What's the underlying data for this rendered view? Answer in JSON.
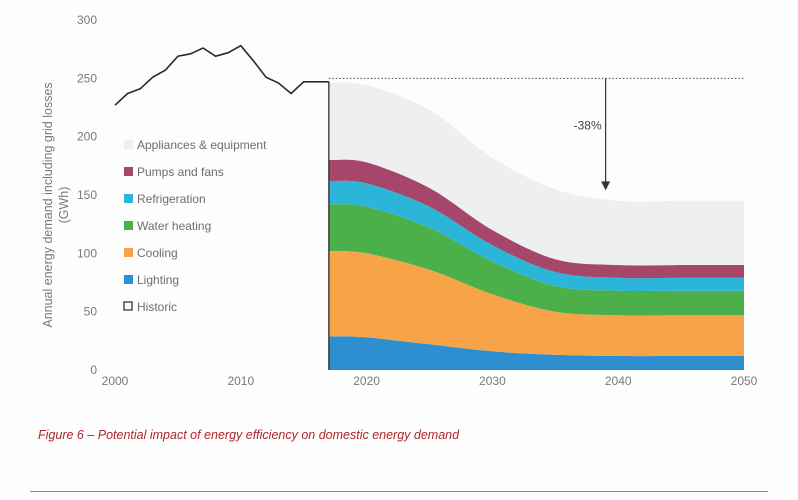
{
  "caption": "Figure 6 – Potential impact of energy efficiency on domestic energy demand",
  "chart_data": {
    "type": "area",
    "title": "",
    "ylabel": "Annual energy demand including grid losses (GWh)",
    "xlabel": "",
    "xlim": [
      2000,
      2050
    ],
    "ylim": [
      0,
      300
    ],
    "x_ticks": [
      2000,
      2010,
      2020,
      2030,
      2040,
      2050
    ],
    "y_ticks": [
      0,
      50,
      100,
      150,
      200,
      250,
      300
    ],
    "grid": false,
    "legend_position": "left",
    "legend": [
      {
        "label": "Appliances & equipment",
        "color": "#eef0f0",
        "marker": "square"
      },
      {
        "label": "Pumps and fans",
        "color": "#a6466a",
        "marker": "square"
      },
      {
        "label": "Refrigeration",
        "color": "#2bb6d9",
        "marker": "square"
      },
      {
        "label": "Water heating",
        "color": "#4cb04a",
        "marker": "square"
      },
      {
        "label": "Cooling",
        "color": "#f7a448",
        "marker": "square"
      },
      {
        "label": "Lighting",
        "color": "#2d8fd0",
        "marker": "square"
      },
      {
        "label": "Historic",
        "color": "#333333",
        "marker": "outline"
      }
    ],
    "historic": {
      "name": "Historic",
      "x": [
        2000,
        2001,
        2002,
        2003,
        2004,
        2005,
        2006,
        2007,
        2008,
        2009,
        2010,
        2011,
        2012,
        2013,
        2014,
        2015,
        2016,
        2017
      ],
      "y": [
        227,
        237,
        241,
        251,
        257,
        269,
        271,
        276,
        269,
        272,
        278,
        265,
        251,
        246,
        237,
        247,
        247,
        247
      ]
    },
    "projection": {
      "x": [
        2017,
        2020,
        2025,
        2030,
        2035,
        2040,
        2045,
        2050
      ],
      "series": [
        {
          "name": "Lighting",
          "values": [
            29,
            28,
            22,
            16,
            13,
            12,
            12,
            12
          ]
        },
        {
          "name": "Cooling",
          "values": [
            73,
            72,
            64,
            49,
            37,
            35,
            35,
            35
          ]
        },
        {
          "name": "Water heating",
          "values": [
            40,
            40,
            36,
            28,
            22,
            21,
            21,
            21
          ]
        },
        {
          "name": "Refrigeration",
          "values": [
            20,
            20,
            18,
            14,
            12,
            11,
            11,
            11
          ]
        },
        {
          "name": "Pumps and fans",
          "values": [
            18,
            18,
            16,
            13,
            11,
            11,
            11,
            11
          ]
        },
        {
          "name": "Appliances & equipment",
          "values": [
            66,
            66,
            67,
            62,
            60,
            55,
            55,
            55
          ]
        }
      ]
    },
    "baseline": {
      "x": [
        2017,
        2050
      ],
      "y": [
        250,
        250
      ],
      "style": "dotted"
    },
    "annotation": {
      "text": "-38%",
      "x": 2039,
      "from": 250,
      "to": 154
    }
  }
}
